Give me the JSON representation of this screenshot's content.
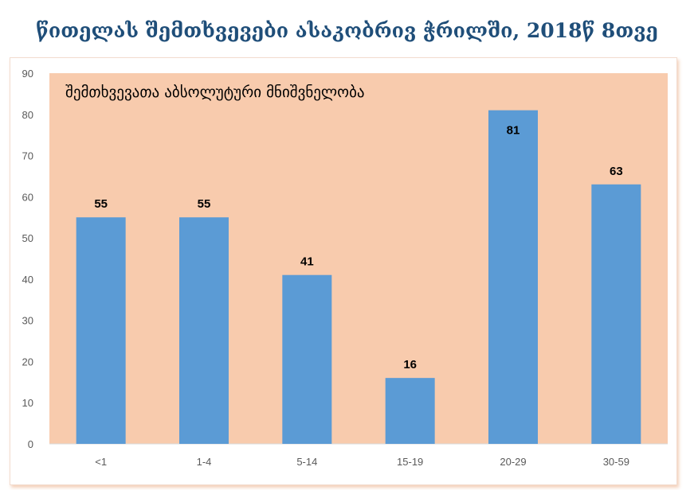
{
  "title": "წითელას შემთხვევები ასაკობრივ ჭრილში, 2018წ 8თვე",
  "chart_data": {
    "type": "bar",
    "subtitle": "შემთხვევათა აბსოლუტური მნიშვნელობა",
    "categories": [
      "<1",
      "1-4",
      "5-14",
      "15-19",
      "20-29",
      "30-59"
    ],
    "values": [
      55,
      55,
      41,
      16,
      81,
      63
    ],
    "data_labels": [
      "55",
      "55",
      "41",
      "16",
      "81",
      "63"
    ],
    "yticks": [
      "0",
      "10",
      "20",
      "30",
      "40",
      "50",
      "60",
      "70",
      "80",
      "90"
    ],
    "ylim": [
      0,
      90
    ],
    "grid": false,
    "colors": {
      "bar": "#5b9bd5",
      "plot_background": "#f8cbad",
      "title": "#1f4e79"
    }
  }
}
